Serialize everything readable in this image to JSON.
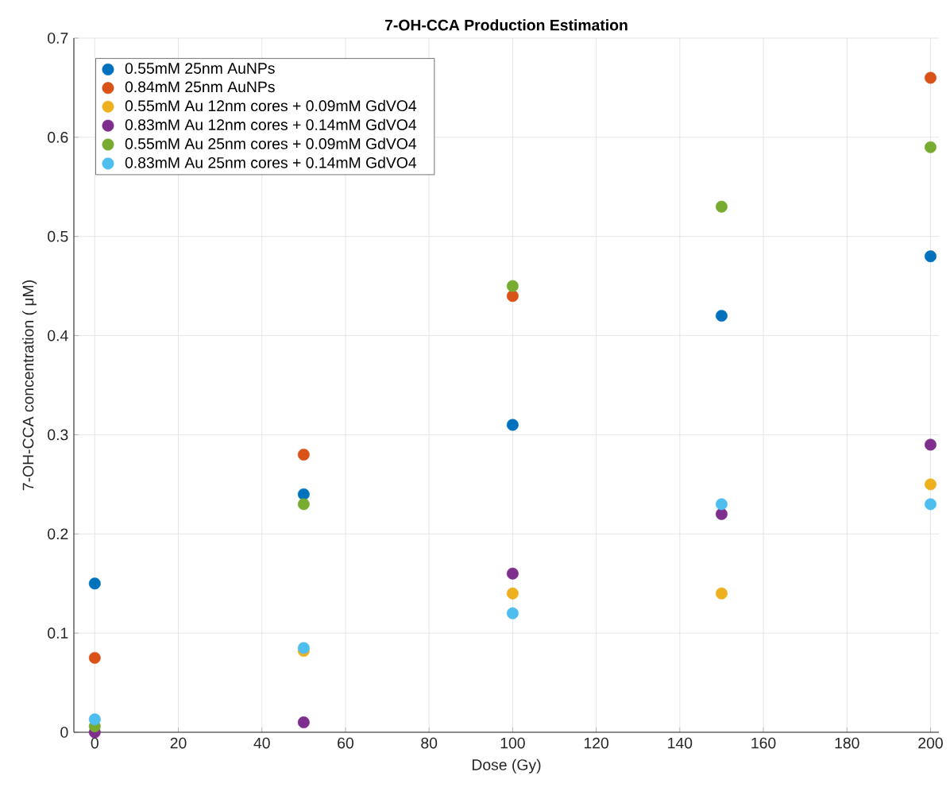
{
  "chart_data": {
    "type": "scatter",
    "title": "7-OH-CCA Production Estimation",
    "xlabel": "Dose (Gy)",
    "ylabel": "7-OH-CCA concentration ( μM)",
    "x": [
      0,
      50,
      100,
      150,
      200
    ],
    "series": [
      {
        "name": "0.55mM 25nm AuNPs",
        "color": "#0072bd",
        "values": [
          0.15,
          0.24,
          0.31,
          0.42,
          0.48
        ]
      },
      {
        "name": "0.84mM 25nm AuNPs",
        "color": "#d95319",
        "values": [
          0.075,
          0.28,
          0.44,
          null,
          0.66
        ]
      },
      {
        "name": "0.55mM Au 12nm cores + 0.09mM GdVO4",
        "color": "#edb120",
        "values": [
          null,
          0.082,
          0.14,
          0.14,
          0.25
        ]
      },
      {
        "name": "0.83mM Au 12nm cores + 0.14mM GdVO4",
        "color": "#7e2f8e",
        "values": [
          0,
          0.01,
          0.16,
          0.22,
          0.29
        ]
      },
      {
        "name": "0.55mM Au 25nm cores + 0.09mM GdVO4",
        "color": "#77ac30",
        "values": [
          0.006,
          0.23,
          0.45,
          0.53,
          0.59
        ]
      },
      {
        "name": "0.83mM Au 25nm cores + 0.14mM GdVO4",
        "color": "#4dbeee",
        "values": [
          0.013,
          0.085,
          0.12,
          0.23,
          0.23
        ]
      }
    ],
    "xlim": [
      -5,
      202
    ],
    "ylim": [
      0,
      0.7
    ],
    "xticks": [
      0,
      20,
      40,
      60,
      80,
      100,
      120,
      140,
      160,
      180,
      200
    ],
    "yticks": [
      0,
      0.1,
      0.2,
      0.3,
      0.4,
      0.5,
      0.6,
      0.7
    ],
    "grid": true,
    "legend": "top left",
    "marker": "circle"
  }
}
